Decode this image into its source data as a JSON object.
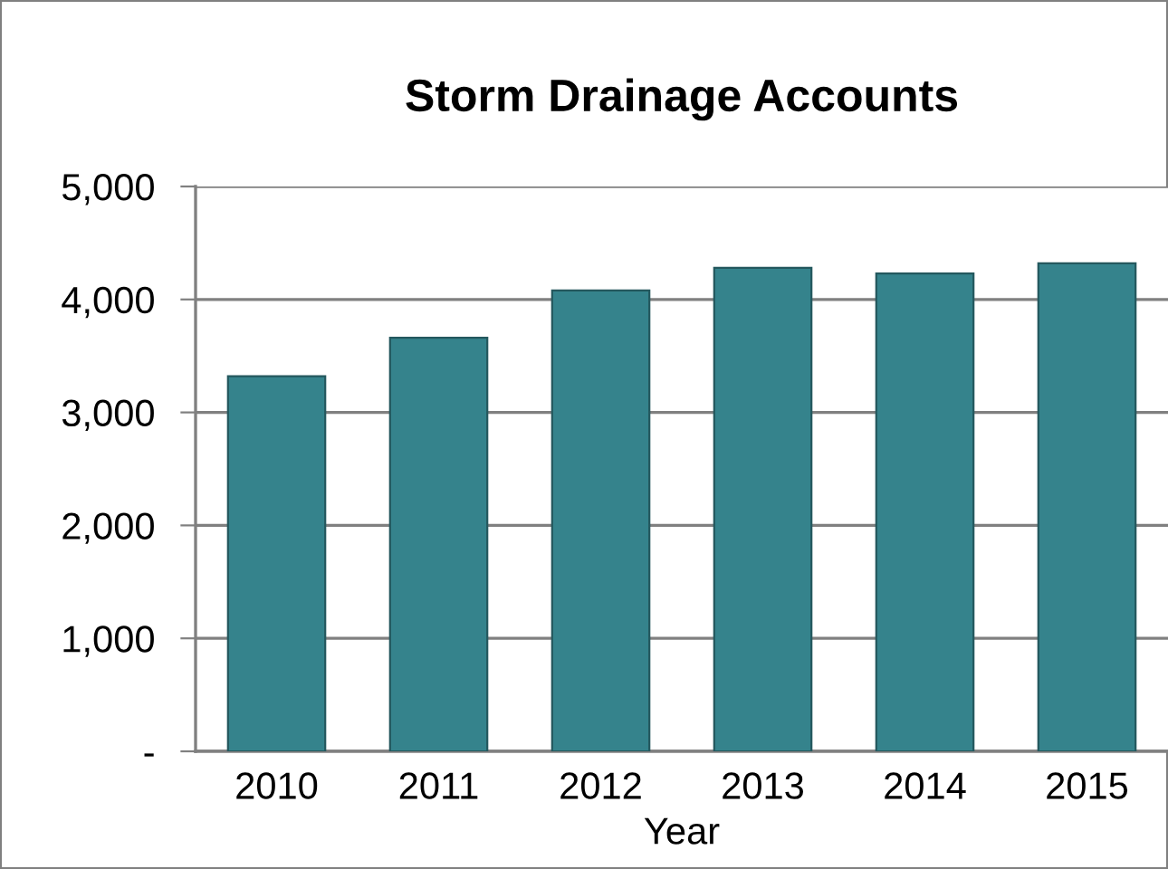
{
  "chart_data": {
    "type": "bar",
    "title": "Storm Drainage Accounts",
    "xlabel": "Year",
    "categories": [
      "2010",
      "2011",
      "2012",
      "2013",
      "2014",
      "2015"
    ],
    "values": [
      3320,
      3660,
      4080,
      4280,
      4230,
      4320
    ],
    "color": "#35838c",
    "ylim": [
      0,
      5000
    ],
    "yticks": [
      {
        "value": 0,
        "label": "-"
      },
      {
        "value": 1000,
        "label": "1,000"
      },
      {
        "value": 2000,
        "label": "2,000"
      },
      {
        "value": 3000,
        "label": "3,000"
      },
      {
        "value": 4000,
        "label": "4,000"
      },
      {
        "value": 5000,
        "label": "5,000"
      }
    ],
    "grid": "y",
    "legend": false
  }
}
